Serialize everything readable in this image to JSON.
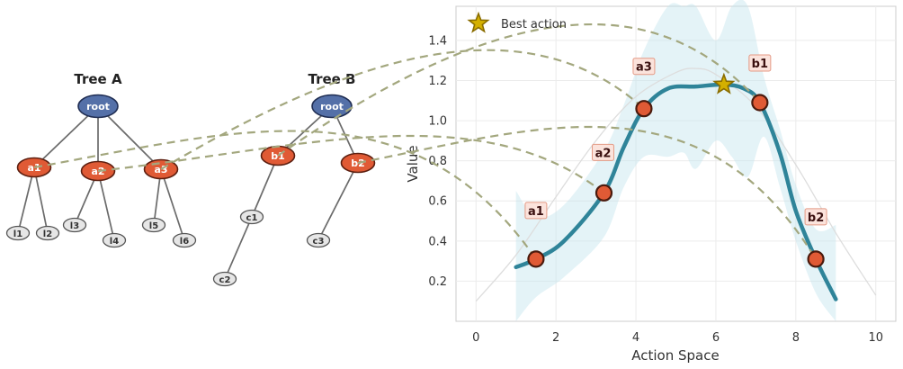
{
  "trees": [
    {
      "title": "Tree A",
      "nodes": [
        {
          "id": "rootA",
          "label": "root",
          "kind": "root"
        },
        {
          "id": "a1",
          "label": "a1",
          "kind": "action"
        },
        {
          "id": "a2",
          "label": "a2",
          "kind": "action"
        },
        {
          "id": "a3",
          "label": "a3",
          "kind": "action"
        },
        {
          "id": "l1",
          "label": "l1",
          "kind": "leaf"
        },
        {
          "id": "l2",
          "label": "l2",
          "kind": "leaf"
        },
        {
          "id": "l3",
          "label": "l3",
          "kind": "leaf"
        },
        {
          "id": "l4",
          "label": "l4",
          "kind": "leaf"
        },
        {
          "id": "l5",
          "label": "l5",
          "kind": "leaf"
        },
        {
          "id": "l6",
          "label": "l6",
          "kind": "leaf"
        }
      ],
      "edges": [
        [
          "rootA",
          "a1"
        ],
        [
          "rootA",
          "a2"
        ],
        [
          "rootA",
          "a3"
        ],
        [
          "a1",
          "l1"
        ],
        [
          "a1",
          "l2"
        ],
        [
          "a2",
          "l3"
        ],
        [
          "a2",
          "l4"
        ],
        [
          "a3",
          "l5"
        ],
        [
          "a3",
          "l6"
        ]
      ]
    },
    {
      "title": "Tree B",
      "nodes": [
        {
          "id": "rootB",
          "label": "root",
          "kind": "root"
        },
        {
          "id": "b1",
          "label": "b1",
          "kind": "action"
        },
        {
          "id": "b2",
          "label": "b2",
          "kind": "action"
        },
        {
          "id": "c1",
          "label": "c1",
          "kind": "leaf"
        },
        {
          "id": "c2",
          "label": "c2",
          "kind": "leaf"
        },
        {
          "id": "c3",
          "label": "c3",
          "kind": "leaf"
        }
      ],
      "edges": [
        [
          "rootB",
          "b1"
        ],
        [
          "rootB",
          "b2"
        ],
        [
          "b1",
          "c1"
        ],
        [
          "c1",
          "c2"
        ],
        [
          "b2",
          "c3"
        ]
      ]
    }
  ],
  "links": [
    {
      "from": "a1",
      "to": "a1"
    },
    {
      "from": "a2",
      "to": "a2"
    },
    {
      "from": "a3",
      "to": "a3"
    },
    {
      "from": "b1",
      "to": "b1"
    },
    {
      "from": "b2",
      "to": "b2"
    }
  ],
  "colors": {
    "root": "#5470a8",
    "action": "#e05a35",
    "leaf": "#e6e6e6",
    "curve": "#2f8499",
    "band": "#c4e4ee",
    "marker": "#e05a35",
    "star": "#d4b000",
    "link": "#a3a77e"
  },
  "chart_data": {
    "type": "line",
    "xlabel": "Action Space",
    "ylabel": "Value",
    "xlim": [
      -0.5,
      10.5
    ],
    "ylim": [
      0.0,
      1.57
    ],
    "xticks": [
      0,
      2,
      4,
      6,
      8,
      10
    ],
    "yticks": [
      0.2,
      0.4,
      0.6,
      0.8,
      1.0,
      1.2,
      1.4
    ],
    "grid": true,
    "series": [
      {
        "x": [
          1.0,
          1.5,
          2.2,
          3.2,
          3.7,
          4.2,
          4.8,
          5.5,
          6.2,
          6.7,
          7.1,
          7.6,
          8.0,
          8.5,
          9.0
        ],
        "values": [
          0.27,
          0.31,
          0.4,
          0.64,
          0.87,
          1.06,
          1.16,
          1.17,
          1.18,
          1.16,
          1.09,
          0.84,
          0.55,
          0.31,
          0.11
        ]
      },
      {
        "x": [
          0.0,
          1.0,
          2.0,
          3.0,
          4.0,
          5.0,
          5.5,
          6.0,
          7.0,
          8.0,
          9.0,
          10.0
        ],
        "values": [
          0.1,
          0.33,
          0.62,
          0.9,
          1.12,
          1.24,
          1.26,
          1.23,
          1.07,
          0.78,
          0.44,
          0.13
        ]
      }
    ],
    "band": {
      "x": [
        1.0,
        1.5,
        2.2,
        3.2,
        3.7,
        4.2,
        4.8,
        5.2,
        5.5,
        6.0,
        6.4,
        6.8,
        7.2,
        7.6,
        8.0,
        8.5,
        9.0
      ],
      "upper": [
        0.65,
        0.52,
        0.58,
        0.85,
        1.08,
        1.35,
        1.62,
        1.65,
        1.6,
        1.4,
        1.57,
        1.65,
        1.22,
        0.96,
        0.68,
        0.46,
        0.48
      ],
      "lower": [
        0.0,
        0.12,
        0.22,
        0.42,
        0.67,
        0.82,
        0.82,
        0.84,
        0.76,
        0.9,
        0.82,
        0.72,
        0.92,
        0.67,
        0.4,
        0.14,
        0.0
      ]
    },
    "points": [
      {
        "label": "a1",
        "x": 1.5,
        "y": 0.31
      },
      {
        "label": "a2",
        "x": 3.2,
        "y": 0.64
      },
      {
        "label": "a3",
        "x": 4.2,
        "y": 1.06
      },
      {
        "label": "b1",
        "x": 7.1,
        "y": 1.09
      },
      {
        "label": "b2",
        "x": 8.5,
        "y": 0.31
      }
    ],
    "best_action": {
      "x": 6.2,
      "y": 1.18
    },
    "legend": {
      "label": "Best action",
      "placement": "top-left"
    }
  }
}
